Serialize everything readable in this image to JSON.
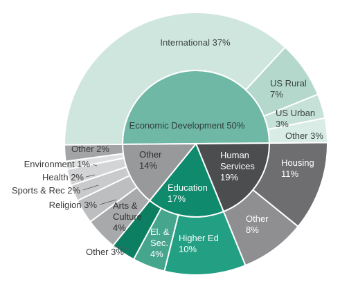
{
  "chart_data": {
    "type": "sunburst",
    "title": "",
    "inner": [
      {
        "label": "Economic Development 50%",
        "value": 50,
        "color": "#6fb8a5",
        "text_color": "#2f3a37",
        "children": [
          {
            "label": "International 37%",
            "value": 37,
            "color": "#cfe6de",
            "text_color": "#3a4441"
          },
          {
            "label": "US Rural 7%",
            "value": 7,
            "color": "#b4d8cc",
            "text_color": "#3a4441"
          },
          {
            "label": "US Urban 3%",
            "value": 3,
            "color": "#c6e1d7",
            "text_color": "#3a4441"
          },
          {
            "label": "Other 3%",
            "value": 3,
            "color": "#d9ece5",
            "text_color": "#3a4441"
          }
        ]
      },
      {
        "label": "Human Services 19%",
        "value": 19,
        "color": "#4b4d4f",
        "text_color": "#ffffff",
        "children": [
          {
            "label": "Housing 11%",
            "value": 11,
            "color": "#6e6e70",
            "text_color": "#ffffff"
          },
          {
            "label": "Other 8%",
            "value": 8,
            "color": "#8f8f91",
            "text_color": "#ffffff"
          }
        ]
      },
      {
        "label": "Education 17%",
        "value": 17,
        "color": "#0f8a6c",
        "text_color": "#ffffff",
        "children": [
          {
            "label": "Higher Ed 10%",
            "value": 10,
            "color": "#23a083",
            "text_color": "#ffffff"
          },
          {
            "label": "El. & Sec. 4%",
            "value": 4,
            "color": "#46a58d",
            "text_color": "#ffffff"
          },
          {
            "label": "Other 3%",
            "value": 3,
            "color": "#0c7f62",
            "text_color": "#3a3a3a"
          }
        ]
      },
      {
        "label": "Other 14%",
        "value": 14,
        "color": "#98999b",
        "text_color": "#2f2f30",
        "children": [
          {
            "label": "Arts & Culture 4%",
            "value": 4,
            "color": "#a8a9ab",
            "text_color": "#2f2f30"
          },
          {
            "label": "Religion 3%",
            "value": 3,
            "color": "#bdbec0",
            "text_color": "#3a3a3a"
          },
          {
            "label": "Sports & Rec 2%",
            "value": 2,
            "color": "#c9cacb",
            "text_color": "#3a3a3a"
          },
          {
            "label": "Health 2%",
            "value": 2,
            "color": "#d3d4d5",
            "text_color": "#3a3a3a"
          },
          {
            "label": "Environment 1%",
            "value": 1,
            "color": "#dedfe0",
            "text_color": "#3a3a3a"
          },
          {
            "label": "Other 2%",
            "value": 2,
            "color": "#a3a4a6",
            "text_color": "#3a3a3a"
          }
        ]
      }
    ]
  }
}
